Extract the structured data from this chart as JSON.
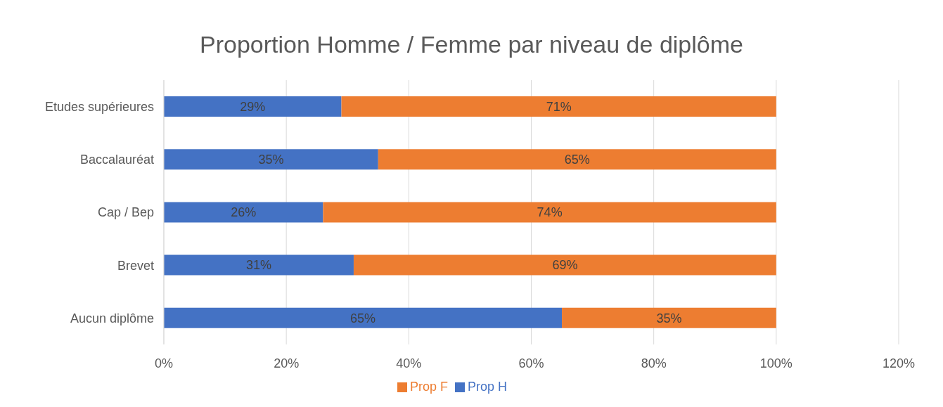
{
  "chart_data": {
    "type": "bar",
    "orientation": "horizontal",
    "stacked": true,
    "title": "Proportion Homme / Femme par niveau de diplôme",
    "categories": [
      "Etudes supérieures",
      "Baccalauréat",
      "Cap / Bep",
      "Brevet",
      "Aucun diplôme"
    ],
    "series": [
      {
        "name": "Prop H",
        "color": "#4472c4",
        "values": [
          29,
          35,
          26,
          31,
          65
        ],
        "value_labels": [
          "29%",
          "35%",
          "26%",
          "31%",
          "65%"
        ]
      },
      {
        "name": "Prop F",
        "color": "#ed7d31",
        "values": [
          71,
          65,
          74,
          69,
          35
        ],
        "value_labels": [
          "71%",
          "65%",
          "74%",
          "69%",
          "35%"
        ]
      }
    ],
    "xlim": [
      0,
      120
    ],
    "xticks": [
      {
        "value": 0,
        "label": "0%"
      },
      {
        "value": 20,
        "label": "20%"
      },
      {
        "value": 40,
        "label": "40%"
      },
      {
        "value": 60,
        "label": "60%"
      },
      {
        "value": 80,
        "label": "80%"
      },
      {
        "value": 100,
        "label": "100%"
      },
      {
        "value": 120,
        "label": "120%"
      }
    ],
    "grid": "x",
    "legend": "bottom"
  }
}
